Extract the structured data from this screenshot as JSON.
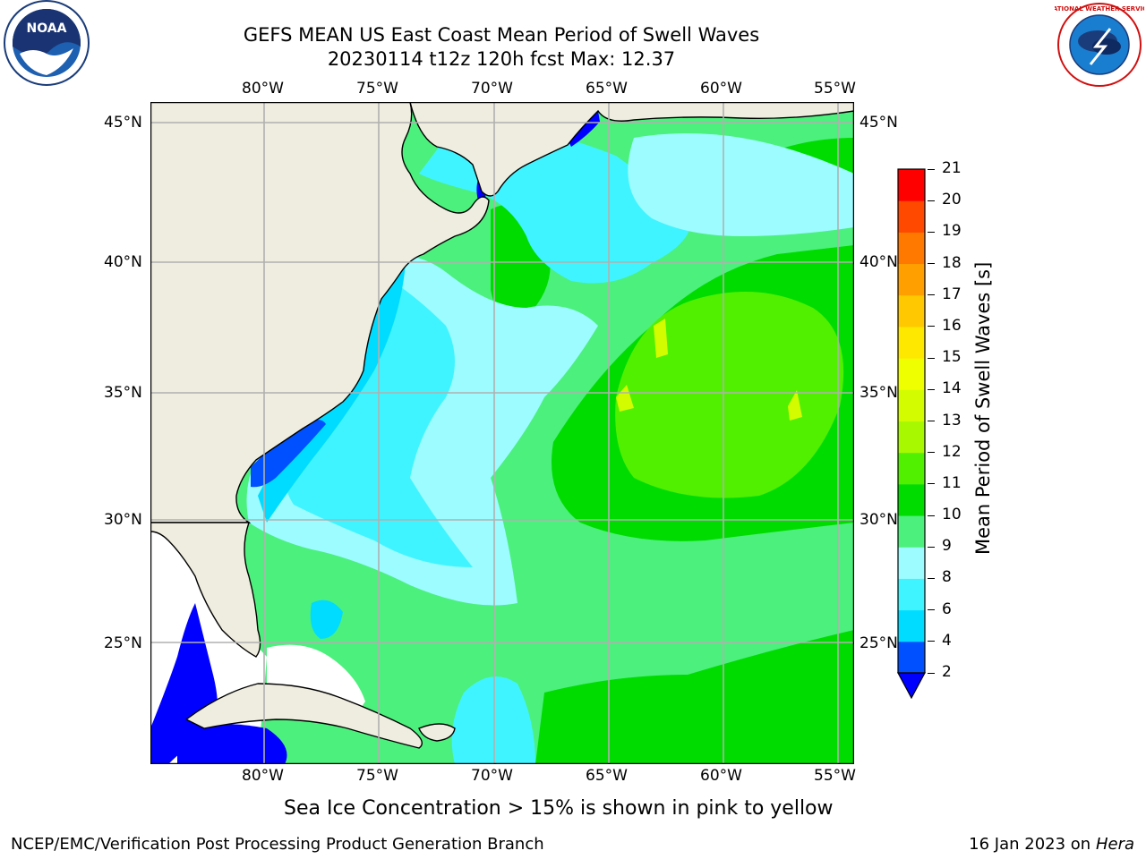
{
  "header": {
    "title_line1": "GEFS MEAN US East Coast Mean Period of Swell Waves",
    "title_line2": "20230114 t12z 120h fcst   Max: 12.37"
  },
  "logos": {
    "left": {
      "name": "noaa-logo",
      "text": "NOAA"
    },
    "right": {
      "name": "nws-logo",
      "text": "NATIONAL WEATHER SERVICE"
    }
  },
  "map": {
    "lon_ticks_top": [
      "80°W",
      "75°W",
      "70°W",
      "65°W",
      "60°W",
      "55°W"
    ],
    "lon_ticks_bottom": [
      "80°W",
      "75°W",
      "70°W",
      "65°W",
      "60°W",
      "55°W"
    ],
    "lat_ticks_left": [
      "45°N",
      "40°N",
      "35°N",
      "30°N",
      "25°N"
    ],
    "lat_ticks_right": [
      "45°N",
      "40°N",
      "35°N",
      "30°N",
      "25°N"
    ],
    "colors": {
      "land": "#efeddf",
      "grid": "#b0b0b0",
      "no_data": "#ffffff"
    }
  },
  "colorbar": {
    "label": "Mean Period of Swell Waves [s]",
    "levels": [
      "2",
      "4",
      "6",
      "8",
      "9",
      "10",
      "11",
      "12",
      "13",
      "14",
      "15",
      "16",
      "17",
      "18",
      "19",
      "20",
      "21"
    ],
    "colors": [
      "#0050ff",
      "#00dcff",
      "#40f4ff",
      "#9cfcff",
      "#4cf07c",
      "#00dc00",
      "#50f000",
      "#a8f800",
      "#d4fc00",
      "#f0ff00",
      "#ffe800",
      "#ffc800",
      "#ffa000",
      "#ff7800",
      "#ff4800",
      "#ff0000"
    ],
    "under_color": "#0000ff"
  },
  "subtitle": "Sea Ice Concentration > 15% is shown in pink to yellow",
  "footer": {
    "left": "NCEP/EMC/Verification Post Processing Product Generation Branch",
    "date": "16 Jan 2023 on ",
    "host": "Hera"
  }
}
